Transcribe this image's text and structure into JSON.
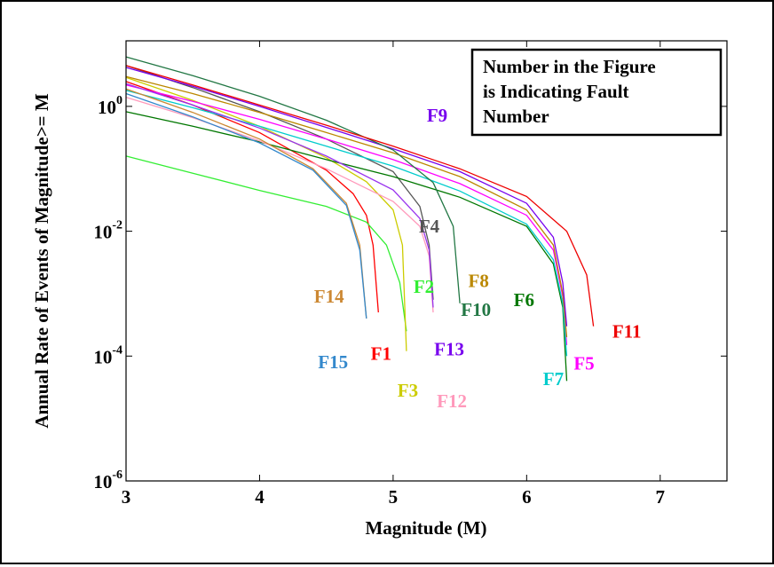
{
  "chart_data": {
    "type": "line",
    "title": "",
    "xlabel": "Magnitude (M)",
    "ylabel": "Annual Rate of Events of Magnitude>= M",
    "xlim": [
      3,
      7.5
    ],
    "ylim_log10": [
      -6,
      1.05
    ],
    "y_scale": "log",
    "x_ticks": [
      3,
      4,
      5,
      6,
      7
    ],
    "x_tick_labels": [
      "3",
      "4",
      "5",
      "6",
      "7"
    ],
    "y_ticks": [
      1,
      0.01,
      0.0001,
      1e-06
    ],
    "y_tick_labels": [
      {
        "base": "10",
        "exp": "0"
      },
      {
        "base": "10",
        "exp": "-2"
      },
      {
        "base": "10",
        "exp": "-4"
      },
      {
        "base": "10",
        "exp": "-6"
      }
    ],
    "grid": false,
    "annotation_box": {
      "lines": [
        "Number in the Figure",
        "is Indicating Fault",
        "Number"
      ]
    },
    "series": [
      {
        "name": "F1",
        "color": "#ff0000",
        "x": [
          3,
          3.5,
          4,
          4.5,
          4.7,
          4.8,
          4.85,
          4.89
        ],
        "y": [
          2.5,
          1.05,
          0.38,
          0.095,
          0.04,
          0.018,
          0.006,
          0.0005
        ]
      },
      {
        "name": "F2",
        "color": "#33ee33",
        "x": [
          3,
          3.5,
          4,
          4.5,
          4.8,
          4.95,
          5.05,
          5.1
        ],
        "y": [
          0.16,
          0.085,
          0.045,
          0.025,
          0.014,
          0.006,
          0.0015,
          0.00025
        ]
      },
      {
        "name": "F3",
        "color": "#cccc00",
        "x": [
          3,
          3.5,
          4,
          4.5,
          4.8,
          5.0,
          5.07,
          5.1
        ],
        "y": [
          2.9,
          1.25,
          0.48,
          0.15,
          0.062,
          0.022,
          0.006,
          0.00012
        ]
      },
      {
        "name": "F4",
        "color": "#555555",
        "x": [
          3,
          3.5,
          4,
          4.5,
          5.0,
          5.2,
          5.27,
          5.3
        ],
        "y": [
          4.5,
          2.0,
          0.82,
          0.3,
          0.09,
          0.025,
          0.006,
          0.0008
        ]
      },
      {
        "name": "F5",
        "color": "#ff00ff",
        "x": [
          3,
          3.5,
          4,
          4.5,
          5.0,
          5.5,
          6.0,
          6.2,
          6.27,
          6.3
        ],
        "y": [
          2.2,
          1.2,
          0.62,
          0.3,
          0.14,
          0.058,
          0.018,
          0.005,
          0.0009,
          0.00015
        ]
      },
      {
        "name": "F6",
        "color": "#007700",
        "x": [
          3,
          3.5,
          4,
          4.5,
          5.0,
          5.5,
          6.0,
          6.2,
          6.27,
          6.3
        ],
        "y": [
          0.82,
          0.48,
          0.27,
          0.14,
          0.075,
          0.035,
          0.012,
          0.003,
          0.0006,
          4e-05
        ]
      },
      {
        "name": "F7",
        "color": "#00cccc",
        "x": [
          3,
          3.5,
          4,
          4.5,
          5.0,
          5.5,
          6.0,
          6.2,
          6.27,
          6.3
        ],
        "y": [
          1.8,
          0.95,
          0.48,
          0.23,
          0.11,
          0.044,
          0.013,
          0.0035,
          0.0007,
          0.0001
        ]
      },
      {
        "name": "F8",
        "color": "#bb8800",
        "x": [
          3,
          3.5,
          4,
          4.5,
          5.0,
          5.5,
          6.0,
          6.2,
          6.27,
          6.3
        ],
        "y": [
          3.0,
          1.6,
          0.8,
          0.38,
          0.18,
          0.075,
          0.022,
          0.006,
          0.001,
          0.0002
        ]
      },
      {
        "name": "F9",
        "color": "#7700ee",
        "x": [
          3,
          3.5,
          4,
          4.5,
          5.0,
          5.5,
          6.0,
          6.2,
          6.27,
          6.3
        ],
        "y": [
          4.2,
          2.1,
          1.0,
          0.46,
          0.21,
          0.09,
          0.028,
          0.008,
          0.0015,
          0.0003
        ]
      },
      {
        "name": "F10",
        "color": "#227744",
        "x": [
          3,
          3.5,
          4,
          4.5,
          5.0,
          5.3,
          5.45,
          5.5
        ],
        "y": [
          6.2,
          3.1,
          1.45,
          0.6,
          0.2,
          0.06,
          0.012,
          0.0007
        ]
      },
      {
        "name": "F11",
        "color": "#ee0000",
        "x": [
          3,
          3.5,
          4,
          4.5,
          5.0,
          5.5,
          6.0,
          6.3,
          6.45,
          6.5
        ],
        "y": [
          4.5,
          2.2,
          1.05,
          0.5,
          0.23,
          0.1,
          0.036,
          0.01,
          0.002,
          0.0003
        ]
      },
      {
        "name": "F12",
        "color": "#ff99bb",
        "x": [
          3,
          3.5,
          4,
          4.5,
          5.0,
          5.2,
          5.27,
          5.3
        ],
        "y": [
          1.4,
          0.66,
          0.28,
          0.1,
          0.03,
          0.012,
          0.004,
          0.0005
        ]
      },
      {
        "name": "F13",
        "color": "#9933ee",
        "x": [
          3,
          3.5,
          4,
          4.5,
          5.0,
          5.2,
          5.27,
          5.3
        ],
        "y": [
          2.3,
          1.05,
          0.45,
          0.16,
          0.046,
          0.016,
          0.005,
          0.0006
        ]
      },
      {
        "name": "F14",
        "color": "#cc8833",
        "x": [
          3,
          3.5,
          4,
          4.4,
          4.65,
          4.75,
          4.8
        ],
        "y": [
          1.9,
          0.8,
          0.3,
          0.1,
          0.028,
          0.006,
          0.0004
        ]
      },
      {
        "name": "F15",
        "color": "#3388cc",
        "x": [
          3,
          3.5,
          4,
          4.4,
          4.65,
          4.75,
          4.8
        ],
        "y": [
          1.6,
          0.68,
          0.26,
          0.095,
          0.026,
          0.005,
          0.0004
        ]
      }
    ],
    "labels": [
      {
        "text": "F9",
        "color": "#7700ee",
        "x": 5.33,
        "y": 0.72
      },
      {
        "text": "F4",
        "color": "#555555",
        "x": 5.27,
        "y": 0.012
      },
      {
        "text": "F8",
        "color": "#bb8800",
        "x": 5.64,
        "y": 0.0016
      },
      {
        "text": "F14",
        "color": "#cc8833",
        "x": 4.52,
        "y": 0.0009
      },
      {
        "text": "F2",
        "color": "#33ee33",
        "x": 5.23,
        "y": 0.0013
      },
      {
        "text": "F10",
        "color": "#227744",
        "x": 5.62,
        "y": 0.00055
      },
      {
        "text": "F6",
        "color": "#007700",
        "x": 5.98,
        "y": 0.0008
      },
      {
        "text": "F11",
        "color": "#ee0000",
        "x": 6.75,
        "y": 0.00025
      },
      {
        "text": "F1",
        "color": "#ff0000",
        "x": 4.91,
        "y": 0.00011
      },
      {
        "text": "F13",
        "color": "#7700ee",
        "x": 5.42,
        "y": 0.00013
      },
      {
        "text": "F15",
        "color": "#3388cc",
        "x": 4.55,
        "y": 8e-05
      },
      {
        "text": "F5",
        "color": "#ff00ff",
        "x": 6.43,
        "y": 7.6e-05
      },
      {
        "text": "F3",
        "color": "#cccc00",
        "x": 5.11,
        "y": 2.8e-05
      },
      {
        "text": "F7",
        "color": "#00cccc",
        "x": 6.2,
        "y": 4.3e-05
      },
      {
        "text": "F12",
        "color": "#ff99bb",
        "x": 5.44,
        "y": 1.9e-05
      }
    ]
  }
}
